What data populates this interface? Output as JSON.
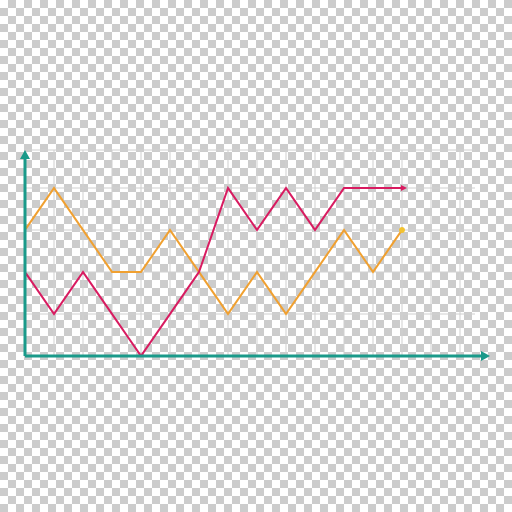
{
  "chart_data": {
    "type": "line",
    "x": [
      0,
      1,
      2,
      3,
      4,
      5,
      6,
      7,
      8,
      9,
      10,
      11,
      12,
      13
    ],
    "series": [
      {
        "color": "#f0a030",
        "values": [
          3,
          4,
          3,
          2,
          2,
          3,
          2,
          1,
          2,
          1,
          2,
          3,
          2,
          3
        ],
        "end_marker": "dot"
      },
      {
        "color": "#d81b60",
        "values": [
          2,
          1,
          2,
          1,
          0,
          1,
          2,
          4,
          3,
          4,
          3,
          4,
          4,
          4
        ],
        "end_marker": "arrow"
      }
    ],
    "xlim": [
      0,
      15.5
    ],
    "ylim": [
      0,
      4.6
    ],
    "grid": true,
    "axis_color": "#1a9a8a",
    "grid_color": "#cfcfcf"
  }
}
